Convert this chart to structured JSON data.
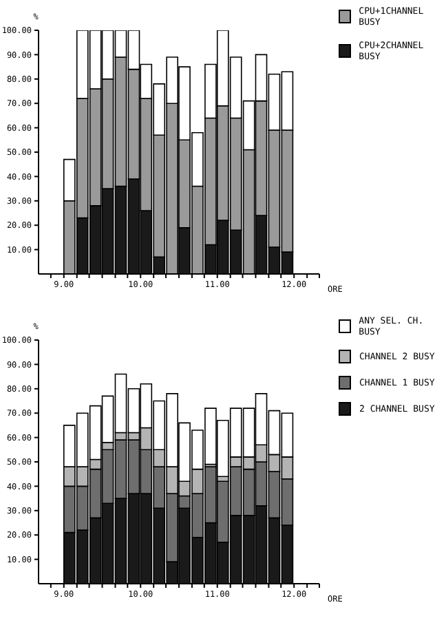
{
  "chart_data": [
    {
      "type": "bar",
      "stacked": true,
      "ylabel": "%",
      "xlabel": "ORE",
      "legend": "top right",
      "x": [
        9.08,
        9.25,
        9.42,
        9.58,
        9.75,
        9.92,
        10.08,
        10.25,
        10.42,
        10.58,
        10.75,
        10.92,
        11.08,
        11.25,
        11.42,
        11.58,
        11.75,
        11.92
      ],
      "xlim": [
        8.67,
        12.33
      ],
      "xticks": [
        {
          "value": 8.83,
          "label": null
        },
        {
          "value": 9,
          "label": "9.00"
        },
        {
          "value": 9.17,
          "label": null
        },
        {
          "value": 9.33,
          "label": null
        },
        {
          "value": 9.5,
          "label": null
        },
        {
          "value": 9.67,
          "label": null
        },
        {
          "value": 9.83,
          "label": null
        },
        {
          "value": 10,
          "label": "10.00"
        },
        {
          "value": 10.17,
          "label": null
        },
        {
          "value": 10.33,
          "label": null
        },
        {
          "value": 10.5,
          "label": null
        },
        {
          "value": 10.67,
          "label": null
        },
        {
          "value": 10.83,
          "label": null
        },
        {
          "value": 11,
          "label": "11.00"
        },
        {
          "value": 11.17,
          "label": null
        },
        {
          "value": 11.33,
          "label": null
        },
        {
          "value": 11.5,
          "label": null
        },
        {
          "value": 11.67,
          "label": null
        },
        {
          "value": 11.83,
          "label": null
        },
        {
          "value": 12,
          "label": "12.00"
        },
        {
          "value": 12.17,
          "label": null
        },
        {
          "value": 12.33,
          "label": null
        }
      ],
      "ylim": [
        0,
        100
      ],
      "yticks": [
        {
          "value": 10,
          "label": "10.00"
        },
        {
          "value": 20,
          "label": "20.00"
        },
        {
          "value": 30,
          "label": "30.00"
        },
        {
          "value": 40,
          "label": "40.00"
        },
        {
          "value": 50,
          "label": "50.00"
        },
        {
          "value": 60,
          "label": "60.00"
        },
        {
          "value": 70,
          "label": "70.00"
        },
        {
          "value": 80,
          "label": "80.00"
        },
        {
          "value": 90,
          "label": "90.00"
        },
        {
          "value": 100,
          "label": "100.00"
        }
      ],
      "series": [
        {
          "name": "CPU+2CHANNEL BUSY",
          "color": "#1a1a1a",
          "values": [
            0,
            23,
            28,
            35,
            36,
            39,
            26,
            7,
            0,
            19,
            0,
            12,
            22,
            18,
            0,
            24,
            11,
            9
          ]
        },
        {
          "name": "CPU+1CHANNEL BUSY",
          "color": "#9a9a9a",
          "values": [
            30,
            49,
            48,
            45,
            53,
            45,
            46,
            50,
            70,
            36,
            36,
            52,
            47,
            46,
            51,
            47,
            48,
            50
          ]
        },
        {
          "color": "#ffffff",
          "values": [
            17,
            28,
            24,
            20,
            11,
            16,
            14,
            21,
            19,
            30,
            22,
            22,
            31,
            25,
            20,
            19,
            23,
            24
          ]
        }
      ]
    },
    {
      "type": "bar",
      "stacked": true,
      "ylabel": "%",
      "xlabel": "ORE",
      "legend": "top right",
      "x": [
        9.08,
        9.25,
        9.42,
        9.58,
        9.75,
        9.92,
        10.08,
        10.25,
        10.42,
        10.58,
        10.75,
        10.92,
        11.08,
        11.25,
        11.42,
        11.58,
        11.75,
        11.92
      ],
      "xlim": [
        8.67,
        12.33
      ],
      "xticks": [
        {
          "value": 8.83,
          "label": null
        },
        {
          "value": 9,
          "label": "9.00"
        },
        {
          "value": 9.17,
          "label": null
        },
        {
          "value": 9.33,
          "label": null
        },
        {
          "value": 9.5,
          "label": null
        },
        {
          "value": 9.67,
          "label": null
        },
        {
          "value": 9.83,
          "label": null
        },
        {
          "value": 10,
          "label": "10.00"
        },
        {
          "value": 10.17,
          "label": null
        },
        {
          "value": 10.33,
          "label": null
        },
        {
          "value": 10.5,
          "label": null
        },
        {
          "value": 10.67,
          "label": null
        },
        {
          "value": 10.83,
          "label": null
        },
        {
          "value": 11,
          "label": "11.00"
        },
        {
          "value": 11.17,
          "label": null
        },
        {
          "value": 11.33,
          "label": null
        },
        {
          "value": 11.5,
          "label": null
        },
        {
          "value": 11.67,
          "label": null
        },
        {
          "value": 11.83,
          "label": null
        },
        {
          "value": 12,
          "label": "12.00"
        },
        {
          "value": 12.17,
          "label": null
        },
        {
          "value": 12.33,
          "label": null
        }
      ],
      "ylim": [
        0,
        100
      ],
      "yticks": [
        {
          "value": 10,
          "label": "10.00"
        },
        {
          "value": 20,
          "label": "20.00"
        },
        {
          "value": 30,
          "label": "30.00"
        },
        {
          "value": 40,
          "label": "40.00"
        },
        {
          "value": 50,
          "label": "50.00"
        },
        {
          "value": 60,
          "label": "60.00"
        },
        {
          "value": 70,
          "label": "70.00"
        },
        {
          "value": 80,
          "label": "80.00"
        },
        {
          "value": 90,
          "label": "90.00"
        },
        {
          "value": 100,
          "label": "100.00"
        }
      ],
      "series": [
        {
          "name": "2 CHANNEL BUSY",
          "color": "#1a1a1a",
          "values": [
            21,
            22,
            27,
            33,
            35,
            37,
            37,
            31,
            9,
            31,
            19,
            25,
            17,
            28,
            28,
            32,
            27,
            24
          ]
        },
        {
          "name": "CHANNEL 1 BUSY",
          "color": "#6e6e6e",
          "values": [
            19,
            18,
            20,
            22,
            24,
            22,
            18,
            17,
            28,
            5,
            18,
            23,
            25,
            20,
            19,
            18,
            19,
            19
          ]
        },
        {
          "name": "CHANNEL 2 BUSY",
          "color": "#b4b4b4",
          "values": [
            8,
            8,
            4,
            3,
            3,
            3,
            9,
            7,
            11,
            6,
            10,
            1,
            2,
            4,
            5,
            7,
            7,
            9
          ]
        },
        {
          "name": "ANY SEL. CH. BUSY",
          "color": "#ffffff",
          "values": [
            17,
            22,
            22,
            19,
            24,
            18,
            18,
            20,
            30,
            24,
            16,
            23,
            23,
            20,
            20,
            21,
            18,
            18
          ]
        }
      ]
    }
  ]
}
